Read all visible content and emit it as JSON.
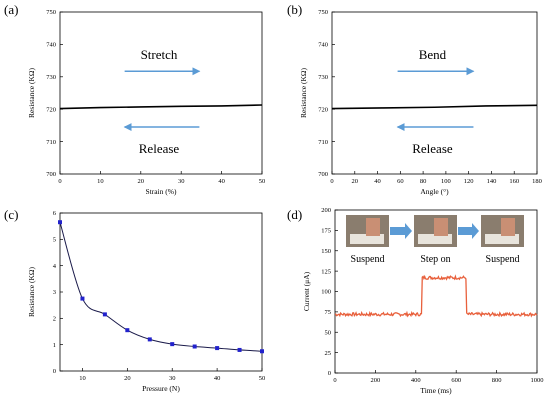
{
  "colors": {
    "axis": "#000000",
    "arrow": "#5b9bd5",
    "pressure_marker": "#2222cc",
    "pressure_line": "#1a1a4a",
    "current_line": "#e8603c",
    "photo_bg": "#8a7d6e"
  },
  "chart_data": [
    {
      "panel": "(a)",
      "type": "line",
      "xlabel": "Strain (%)",
      "ylabel": "Resistance (KΩ)",
      "xlim": [
        0,
        50
      ],
      "ylim": [
        700,
        750
      ],
      "xticks": [
        0,
        10,
        20,
        30,
        40,
        50
      ],
      "yticks": [
        700,
        710,
        720,
        730,
        740,
        750
      ],
      "series": [
        {
          "x": [
            0,
            10,
            20,
            30,
            40,
            50
          ],
          "values": [
            720.2,
            720.5,
            720.7,
            720.9,
            721.0,
            721.3
          ]
        }
      ],
      "annotations": {
        "top": "Stretch",
        "bottom": "Release"
      }
    },
    {
      "panel": "(b)",
      "type": "line",
      "xlabel": "Angle (°)",
      "ylabel": "Resistance (KΩ)",
      "xlim": [
        0,
        180
      ],
      "ylim": [
        700,
        750
      ],
      "xticks": [
        0,
        20,
        40,
        60,
        80,
        100,
        120,
        140,
        160,
        180
      ],
      "yticks": [
        700,
        710,
        720,
        730,
        740,
        750
      ],
      "series": [
        {
          "x": [
            0,
            45,
            90,
            135,
            180
          ],
          "values": [
            720.2,
            720.4,
            720.6,
            721.0,
            721.2
          ]
        }
      ],
      "annotations": {
        "top": "Bend",
        "bottom": "Release"
      }
    },
    {
      "panel": "(c)",
      "type": "line",
      "xlabel": "Pressure (N)",
      "ylabel": "Resistance (KΩ)",
      "xlim": [
        5,
        50
      ],
      "ylim": [
        0,
        6
      ],
      "xticks": [
        10,
        20,
        30,
        40,
        50
      ],
      "yticks": [
        0,
        1,
        2,
        3,
        4,
        5,
        6
      ],
      "series": [
        {
          "x": [
            5,
            10,
            15,
            20,
            25,
            30,
            35,
            40,
            45,
            50
          ],
          "values": [
            5.65,
            2.75,
            2.15,
            1.55,
            1.2,
            1.02,
            0.93,
            0.87,
            0.8,
            0.75
          ]
        }
      ]
    },
    {
      "panel": "(d)",
      "type": "line",
      "xlabel": "Time (ms)",
      "ylabel": "Current (μA)",
      "xlim": [
        0,
        1000
      ],
      "ylim": [
        0,
        200
      ],
      "xticks": [
        0,
        200,
        400,
        600,
        800,
        1000
      ],
      "yticks": [
        0,
        25,
        50,
        75,
        100,
        125,
        150,
        175,
        200
      ],
      "series": [
        {
          "x": [
            0,
            430,
            432,
            650,
            652,
            1000
          ],
          "values": [
            72,
            72,
            117,
            117,
            72,
            72
          ]
        }
      ],
      "annotations": {
        "phases": [
          "Suspend",
          "Step on",
          "Suspend"
        ]
      }
    }
  ]
}
